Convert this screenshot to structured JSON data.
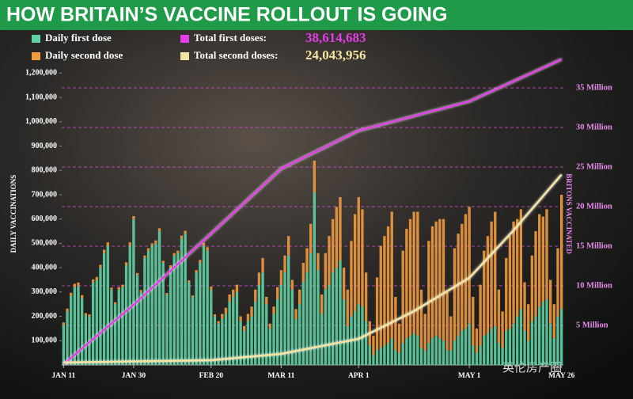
{
  "chart_data": {
    "type": "bar",
    "stacked": true,
    "title": "HOW BRITAIN’S VACCINE ROLLOUT IS GOING",
    "ylabel": "DAILY VACCINATIONS",
    "y2label": "BRITONS VACCINATED",
    "watermark": "英伦房产圈",
    "categories": [
      "JAN 11",
      null,
      null,
      null,
      null,
      null,
      null,
      null,
      null,
      null,
      null,
      null,
      null,
      null,
      null,
      null,
      null,
      null,
      null,
      "JAN 30",
      null,
      null,
      null,
      null,
      null,
      null,
      null,
      null,
      null,
      null,
      null,
      null,
      null,
      null,
      null,
      null,
      null,
      null,
      null,
      null,
      "FEB 20",
      null,
      null,
      null,
      null,
      null,
      null,
      null,
      null,
      null,
      null,
      null,
      null,
      null,
      null,
      null,
      null,
      null,
      null,
      "MAR 11",
      null,
      null,
      null,
      null,
      null,
      null,
      null,
      null,
      null,
      null,
      null,
      null,
      null,
      null,
      null,
      null,
      null,
      null,
      null,
      null,
      "APR 1",
      null,
      null,
      null,
      null,
      null,
      null,
      null,
      null,
      null,
      null,
      null,
      null,
      null,
      null,
      null,
      null,
      null,
      null,
      null,
      null,
      null,
      null,
      null,
      null,
      null,
      null,
      null,
      null,
      null,
      "MAY 1",
      null,
      null,
      null,
      null,
      null,
      null,
      null,
      null,
      null,
      null,
      null,
      null,
      null,
      null,
      null,
      null,
      null,
      null,
      null,
      null,
      null,
      null,
      null,
      null,
      "MAY 26"
    ],
    "ylim": [
      0,
      1250000
    ],
    "yticks": [
      {
        "value": 100000,
        "label": "100,000"
      },
      {
        "value": 200000,
        "label": "200,000"
      },
      {
        "value": 300000,
        "label": "300,000"
      },
      {
        "value": 400000,
        "label": "400,000"
      },
      {
        "value": 500000,
        "label": "500,000"
      },
      {
        "value": 600000,
        "label": "600,000"
      },
      {
        "value": 700000,
        "label": "700,000"
      },
      {
        "value": 800000,
        "label": "800,000"
      },
      {
        "value": 900000,
        "label": "900,000"
      },
      {
        "value": 1000000,
        "label": "1,000,000"
      },
      {
        "value": 1100000,
        "label": "1,100,000"
      },
      {
        "value": 1200000,
        "label": "1,200,000"
      }
    ],
    "y2lim": [
      0,
      38.4
    ],
    "y2ticks": [
      {
        "value": 5,
        "label": "5 Million"
      },
      {
        "value": 10,
        "label": "10 Million"
      },
      {
        "value": 15,
        "label": "15 Million"
      },
      {
        "value": 20,
        "label": "20 Million"
      },
      {
        "value": 25,
        "label": "25 Million"
      },
      {
        "value": 30,
        "label": "30 Million"
      },
      {
        "value": 35,
        "label": "35 Million"
      }
    ],
    "grid": "y2",
    "series": [
      {
        "name": "Daily first dose",
        "color": "#5fd3a4",
        "values": [
          165000,
          220000,
          285000,
          320000,
          325000,
          275000,
          205000,
          200000,
          340000,
          350000,
          400000,
          460000,
          490000,
          310000,
          250000,
          310000,
          320000,
          410000,
          490000,
          600000,
          370000,
          300000,
          440000,
          470000,
          490000,
          500000,
          550000,
          420000,
          290000,
          400000,
          450000,
          460000,
          520000,
          540000,
          340000,
          280000,
          380000,
          420000,
          490000,
          470000,
          310000,
          200000,
          170000,
          190000,
          210000,
          260000,
          280000,
          300000,
          180000,
          140000,
          180000,
          200000,
          260000,
          330000,
          380000,
          250000,
          150000,
          210000,
          270000,
          330000,
          380000,
          450000,
          310000,
          190000,
          250000,
          340000,
          380000,
          460000,
          710000,
          390000,
          210000,
          310000,
          330000,
          380000,
          400000,
          430000,
          270000,
          160000,
          200000,
          220000,
          250000,
          240000,
          180000,
          80000,
          40000,
          60000,
          70000,
          80000,
          90000,
          110000,
          60000,
          50000,
          90000,
          110000,
          120000,
          130000,
          120000,
          70000,
          60000,
          90000,
          110000,
          120000,
          110000,
          100000,
          60000,
          60000,
          100000,
          120000,
          140000,
          150000,
          170000,
          80000,
          50000,
          80000,
          120000,
          130000,
          150000,
          160000,
          90000,
          70000,
          140000,
          150000,
          170000,
          200000,
          230000,
          140000,
          100000,
          180000,
          200000,
          240000,
          260000,
          270000,
          170000,
          110000,
          200000,
          230000
        ]
      },
      {
        "name": "Daily second dose",
        "color": "#f19a3e",
        "values": [
          10000,
          12000,
          12000,
          14000,
          14000,
          12000,
          8000,
          8000,
          12000,
          12000,
          12000,
          14000,
          14000,
          8000,
          8000,
          10000,
          10000,
          12000,
          14000,
          12000,
          8000,
          8000,
          10000,
          10000,
          10000,
          12000,
          12000,
          8000,
          6000,
          10000,
          10000,
          10000,
          12000,
          12000,
          8000,
          6000,
          10000,
          12000,
          12000,
          14000,
          12000,
          8000,
          10000,
          20000,
          25000,
          30000,
          30000,
          30000,
          20000,
          20000,
          30000,
          40000,
          50000,
          50000,
          60000,
          30000,
          20000,
          30000,
          50000,
          60000,
          70000,
          80000,
          40000,
          40000,
          60000,
          80000,
          100000,
          120000,
          130000,
          70000,
          80000,
          150000,
          200000,
          220000,
          250000,
          260000,
          130000,
          150000,
          310000,
          400000,
          440000,
          400000,
          200000,
          100000,
          80000,
          300000,
          420000,
          450000,
          480000,
          520000,
          220000,
          120000,
          380000,
          450000,
          480000,
          500000,
          510000,
          240000,
          150000,
          420000,
          460000,
          470000,
          490000,
          500000,
          240000,
          140000,
          380000,
          420000,
          440000,
          470000,
          480000,
          200000,
          100000,
          250000,
          350000,
          400000,
          440000,
          470000,
          220000,
          150000,
          300000,
          380000,
          420000,
          400000,
          410000,
          200000,
          150000,
          270000,
          350000,
          380000,
          350000,
          370000,
          180000,
          140000,
          280000,
          470000
        ]
      },
      {
        "name": "Total first doses:",
        "type": "line",
        "axis": "y2",
        "color": "#e43ee8",
        "total": {
          "value": 38.614683,
          "label": "38,614,683"
        },
        "values": [
          0.1,
          0.5,
          0.89,
          1.29,
          1.68,
          2.08,
          2.47,
          2.87,
          3.26,
          3.66,
          4.05,
          4.45,
          4.84,
          5.24,
          5.63,
          6.03,
          6.42,
          6.82,
          7.21,
          7.6,
          8.03,
          8.46,
          8.89,
          9.31,
          9.74,
          10.17,
          10.6,
          11.03,
          11.46,
          11.89,
          12.31,
          12.74,
          13.17,
          13.6,
          14.03,
          14.46,
          14.89,
          15.31,
          15.74,
          16.17,
          16.6,
          17.03,
          17.46,
          17.89,
          18.33,
          18.76,
          19.19,
          19.62,
          20.05,
          20.48,
          20.92,
          21.35,
          21.78,
          22.21,
          22.64,
          23.07,
          23.51,
          23.94,
          24.37,
          24.8,
          25.03,
          25.26,
          25.49,
          25.71,
          25.94,
          26.17,
          26.4,
          26.63,
          26.86,
          27.09,
          27.31,
          27.54,
          27.77,
          28.0,
          28.23,
          28.46,
          28.69,
          28.91,
          29.14,
          29.37,
          29.6,
          29.72,
          29.85,
          29.97,
          30.09,
          30.22,
          30.34,
          30.46,
          30.59,
          30.71,
          30.83,
          30.96,
          31.08,
          31.2,
          31.33,
          31.45,
          31.57,
          31.7,
          31.82,
          31.94,
          32.07,
          32.19,
          32.31,
          32.44,
          32.56,
          32.68,
          32.81,
          32.93,
          33.05,
          33.18,
          33.3,
          33.51,
          33.72,
          33.94,
          34.15,
          34.36,
          34.57,
          34.78,
          35.0,
          35.21,
          35.42,
          35.63,
          35.84,
          36.06,
          36.27,
          36.48,
          36.69,
          36.9,
          37.12,
          37.33,
          37.54,
          37.75,
          37.96,
          38.18,
          38.39,
          38.614683
        ]
      },
      {
        "name": "Total second doses:",
        "type": "line",
        "axis": "y2",
        "color": "#f3e4a2",
        "total": {
          "value": 24.043956,
          "label": "24,043,956"
        },
        "values": [
          0.3,
          0.31,
          0.32,
          0.32,
          0.33,
          0.34,
          0.35,
          0.35,
          0.36,
          0.37,
          0.38,
          0.38,
          0.39,
          0.4,
          0.41,
          0.41,
          0.42,
          0.43,
          0.44,
          0.44,
          0.45,
          0.46,
          0.47,
          0.47,
          0.48,
          0.49,
          0.5,
          0.5,
          0.51,
          0.52,
          0.53,
          0.53,
          0.54,
          0.55,
          0.56,
          0.56,
          0.57,
          0.58,
          0.59,
          0.59,
          0.6,
          0.64,
          0.68,
          0.73,
          0.77,
          0.81,
          0.85,
          0.89,
          0.94,
          0.98,
          1.02,
          1.06,
          1.11,
          1.15,
          1.19,
          1.23,
          1.27,
          1.32,
          1.36,
          1.4,
          1.49,
          1.58,
          1.67,
          1.76,
          1.85,
          1.94,
          2.03,
          2.12,
          2.21,
          2.3,
          2.4,
          2.49,
          2.58,
          2.67,
          2.76,
          2.85,
          2.94,
          3.03,
          3.12,
          3.21,
          3.3,
          3.53,
          3.77,
          4.0,
          4.23,
          4.47,
          4.7,
          4.93,
          5.16,
          5.4,
          5.63,
          5.86,
          6.1,
          6.33,
          6.56,
          6.8,
          7.08,
          7.36,
          7.64,
          7.92,
          8.2,
          8.48,
          8.76,
          9.04,
          9.32,
          9.6,
          9.88,
          10.16,
          10.44,
          10.72,
          11.0,
          11.5,
          12.0,
          12.5,
          13.0,
          13.5,
          14.0,
          14.5,
          15.0,
          15.5,
          16.0,
          16.5,
          17.0,
          17.54,
          18.08,
          18.63,
          19.17,
          19.71,
          20.25,
          20.79,
          21.33,
          21.88,
          22.42,
          22.96,
          23.5,
          24.043956
        ]
      }
    ]
  }
}
